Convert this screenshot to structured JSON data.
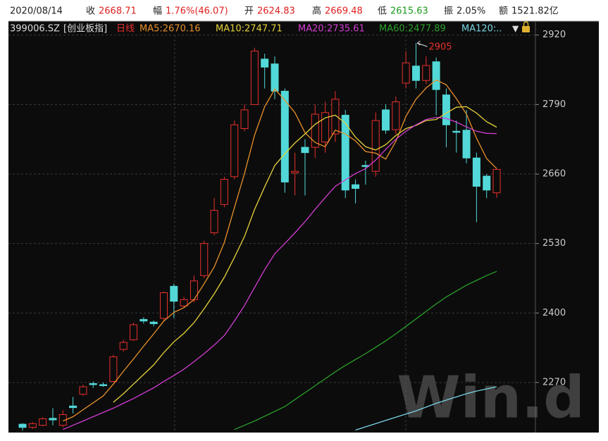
{
  "header": {
    "items": [
      {
        "label": "2020/08/14"
      },
      {
        "label": "收",
        "value": "2668.71",
        "color": "#e02020"
      },
      {
        "label": "幅",
        "value": "1.76%(46.07)",
        "color": "#e02020"
      },
      {
        "label": "开",
        "value": "2624.83",
        "color": "#e02020"
      },
      {
        "label": "高",
        "value": "2669.48",
        "color": "#e02020"
      },
      {
        "label": "低",
        "value": "2615.63",
        "color": "#1a9a1a"
      },
      {
        "label": "振",
        "value": "2.05%",
        "color": "#222222"
      },
      {
        "label": "额",
        "value": "1521.82亿",
        "color": "#222222"
      }
    ]
  },
  "watermark": "Win.d",
  "chart_data": {
    "type": "candlestick",
    "symbol": "399006.SZ",
    "index_name": "[创业板指]",
    "period": "日线",
    "up_color": "#e8302c",
    "down_color": "#52d8d8",
    "open": [
      2192,
      2186,
      2190,
      2203,
      2190,
      2226,
      2248,
      2268,
      2266,
      2272,
      2332,
      2350,
      2388,
      2383,
      2390,
      2450,
      2413,
      2425,
      2470,
      2550,
      2603,
      2655,
      2745,
      2790,
      2875,
      2866,
      2815,
      2662,
      2710,
      2710,
      2720,
      2735,
      2770,
      2640,
      2676,
      2665,
      2780,
      2743,
      2830,
      2862,
      2835,
      2870,
      2808,
      2740,
      2742,
      2690,
      2656,
      2624.83
    ],
    "high": [
      2194,
      2196,
      2205,
      2222,
      2218,
      2243,
      2266,
      2272,
      2270,
      2322,
      2350,
      2382,
      2392,
      2386,
      2440,
      2455,
      2430,
      2470,
      2535,
      2615,
      2655,
      2760,
      2790,
      2896.31,
      2885,
      2880,
      2820,
      2700,
      2725,
      2790,
      2795,
      2815,
      2780,
      2650,
      2685,
      2775,
      2790,
      2805,
      2890,
      2905,
      2880,
      2878,
      2820,
      2760,
      2780,
      2700,
      2660,
      2669.48
    ],
    "low": [
      2180,
      2183,
      2188,
      2190,
      2186,
      2212,
      2245,
      2260,
      2262,
      2270,
      2328,
      2348,
      2380,
      2375,
      2385,
      2390,
      2410,
      2420,
      2465,
      2545,
      2598,
      2650,
      2740,
      2790,
      2820,
      2800,
      2625,
      2620,
      2620,
      2690,
      2700,
      2720,
      2615,
      2605,
      2640,
      2655,
      2735,
      2735,
      2820,
      2820,
      2828,
      2770,
      2710,
      2700,
      2680,
      2570,
      2615,
      2615.63
    ],
    "close": [
      2186,
      2193,
      2202,
      2200,
      2210,
      2223,
      2262,
      2266,
      2264,
      2318,
      2345,
      2378,
      2385,
      2380,
      2438,
      2422,
      2425,
      2460,
      2530,
      2592,
      2650,
      2752,
      2780,
      2890,
      2860,
      2815,
      2645,
      2665,
      2700,
      2772,
      2775,
      2800,
      2630,
      2633,
      2674,
      2760,
      2742,
      2795,
      2868,
      2835,
      2863,
      2818,
      2752,
      2738,
      2690,
      2637,
      2630,
      2668.71
    ],
    "series": [
      {
        "name": "MA5:2670.16",
        "color": "#e8902a",
        "values": [
          null,
          null,
          null,
          null,
          2198,
          2206,
          2219,
          2232,
          2245,
          2267,
          2291,
          2314,
          2338,
          2361,
          2385,
          2401,
          2410,
          2425,
          2455,
          2486,
          2532,
          2597,
          2661,
          2733,
          2786,
          2819,
          2798,
          2775,
          2737,
          2719,
          2711,
          2742,
          2735,
          2722,
          2702,
          2699,
          2688,
          2721,
          2768,
          2800,
          2821,
          2836,
          2827,
          2801,
          2772,
          2727,
          2689,
          2670.16
        ]
      },
      {
        "name": "MA10:2747.71",
        "color": "#e6d23a",
        "values": [
          null,
          null,
          null,
          null,
          null,
          null,
          null,
          null,
          null,
          2233,
          2249,
          2267,
          2285,
          2303,
          2326,
          2346,
          2362,
          2382,
          2408,
          2436,
          2467,
          2504,
          2543,
          2594,
          2636,
          2676,
          2698,
          2718,
          2735,
          2753,
          2765,
          2770,
          2755,
          2729,
          2711,
          2705,
          2715,
          2732,
          2745,
          2751,
          2760,
          2762,
          2774,
          2785,
          2786,
          2774,
          2758,
          2747.71
        ]
      },
      {
        "name": "MA20:2735.61",
        "color": "#d43cd4",
        "values": [
          null,
          null,
          null,
          null,
          2182,
          2190,
          2198,
          2206,
          2214,
          2222,
          2231,
          2240,
          2250,
          2260,
          2272,
          2283,
          2295,
          2309,
          2324,
          2340,
          2358,
          2385,
          2414,
          2448,
          2481,
          2511,
          2530,
          2550,
          2571,
          2594,
          2616,
          2637,
          2649,
          2661,
          2670,
          2686,
          2706,
          2725,
          2740,
          2752,
          2762,
          2766,
          2764,
          2757,
          2748,
          2740,
          2736,
          2735.61
        ]
      },
      {
        "name": "MA60:2477.89",
        "color": "#2aa02a",
        "values": [
          null,
          null,
          null,
          null,
          null,
          null,
          null,
          null,
          null,
          null,
          null,
          null,
          null,
          null,
          null,
          null,
          null,
          null,
          null,
          null,
          null,
          2182,
          2190,
          2198,
          2207,
          2216,
          2225,
          2238,
          2251,
          2264,
          2277,
          2290,
          2302,
          2313,
          2324,
          2336,
          2348,
          2361,
          2375,
          2389,
          2403,
          2417,
          2430,
          2441,
          2452,
          2461,
          2470,
          2477.89
        ]
      },
      {
        "name": "MA120:..",
        "color": "#78d4e4",
        "values": [
          null,
          null,
          null,
          null,
          null,
          null,
          null,
          null,
          null,
          null,
          null,
          null,
          null,
          null,
          null,
          null,
          null,
          null,
          null,
          null,
          null,
          null,
          null,
          null,
          null,
          null,
          null,
          null,
          null,
          null,
          null,
          null,
          null,
          2181,
          2187,
          2193,
          2199,
          2205,
          2211,
          2217,
          2224,
          2231,
          2237,
          2243,
          2249,
          2254,
          2258,
          2262
        ]
      }
    ],
    "ylim": [
      2179,
      2946
    ],
    "yticks": [
      2270,
      2400,
      2530,
      2660,
      2790,
      2920
    ],
    "grid": true
  }
}
